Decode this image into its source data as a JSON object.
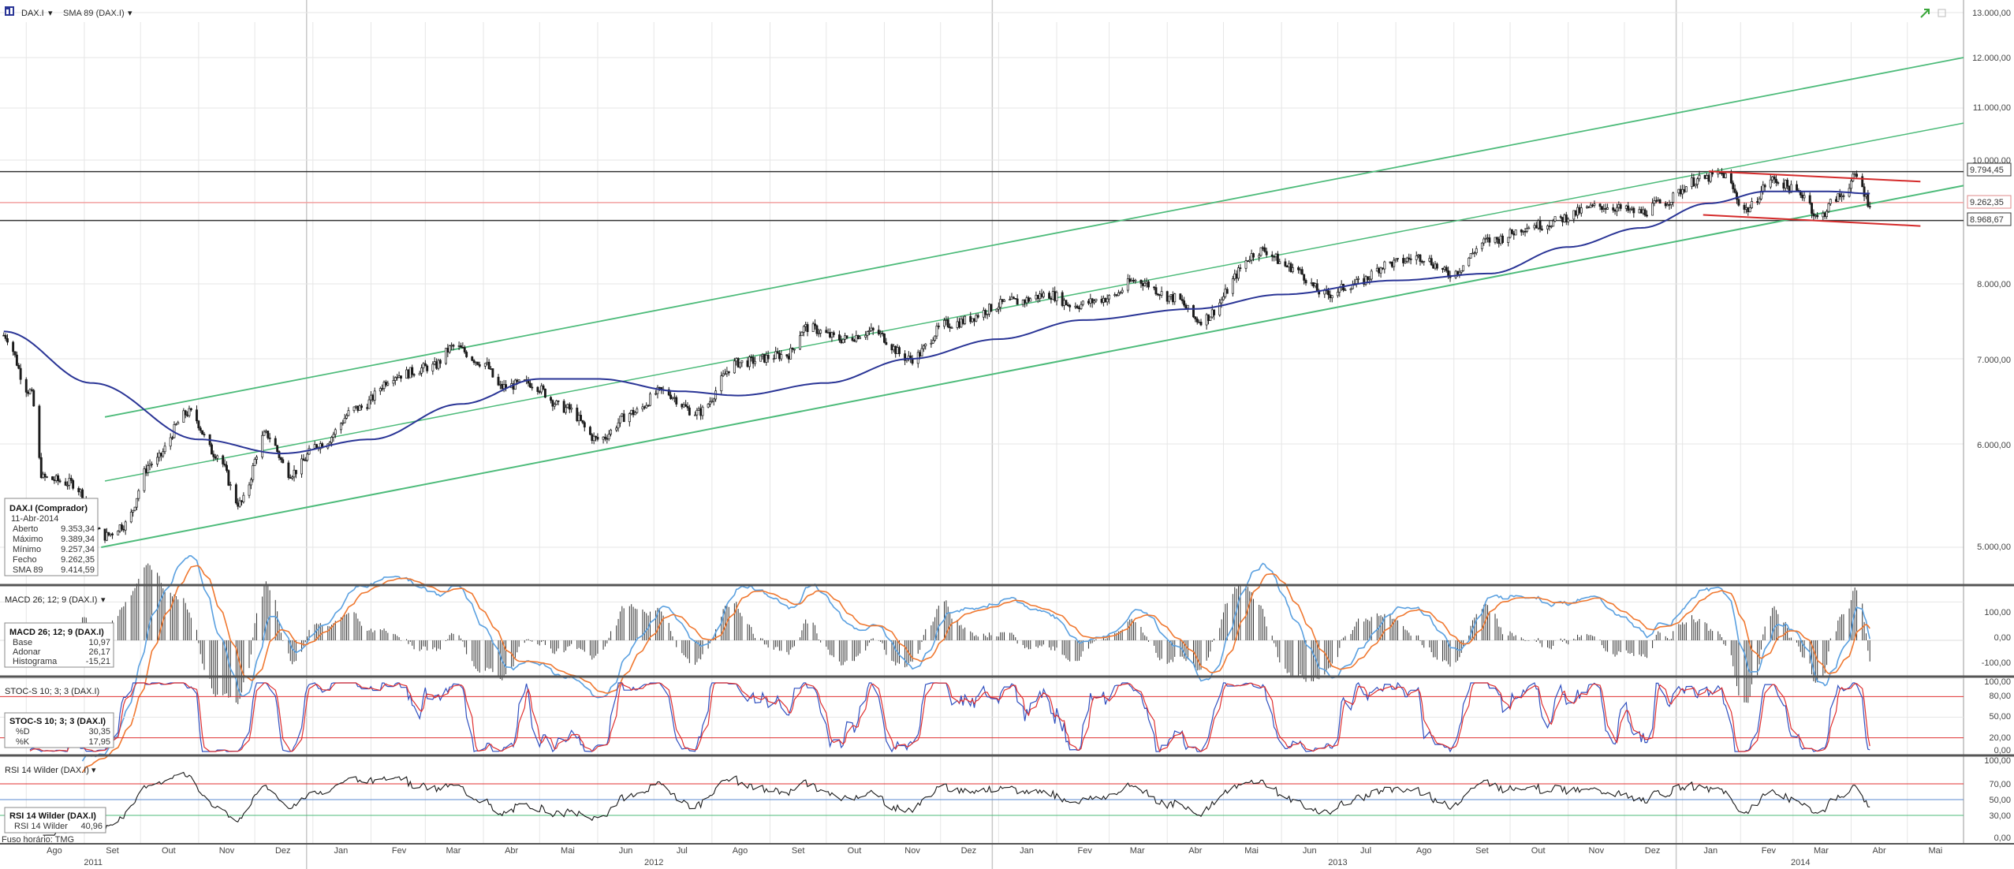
{
  "colors": {
    "price": "#1a1a1a",
    "sma": "#2a3596",
    "channel": "#4dbb7a",
    "trend_red": "#d42a2a",
    "hline_red": "#f2a0a0",
    "hline_dark": "#333333",
    "macd_signal": "#f07830",
    "macd_line": "#5aa0e0",
    "stoch_d": "#e03030",
    "stoch_k": "#3050c0",
    "rsi": "#1a1a1a",
    "grid": "#e6e6e6",
    "separator": "#555555"
  },
  "toolbar": {
    "instrument": "DAX.I",
    "indicator": "SMA 89 (DAX.I)"
  },
  "price_panel": {
    "y_axis_labels": [
      "13.000,00",
      "12.000,00",
      "11.000,00",
      "10.000,00",
      "8.000,00",
      "7.000,00",
      "6.000,00",
      "5.000,00"
    ],
    "level_labels": [
      "9.794,45",
      "9.262,35",
      "8.968,67"
    ],
    "info_box": {
      "title": "DAX.I (Comprador)",
      "date": "11-Abr-2014",
      "rows": [
        {
          "label": "Aberto",
          "value": "9.353,34"
        },
        {
          "label": "Máximo",
          "value": "9.389,34"
        },
        {
          "label": "Mínimo",
          "value": "9.257,34"
        },
        {
          "label": "Fecho",
          "value": "9.262,35"
        },
        {
          "label": "SMA 89",
          "value": "9.414,59"
        }
      ]
    }
  },
  "macd_panel": {
    "header": "MACD 26; 12; 9 (DAX.I)",
    "axis_labels": [
      "100,00",
      "0,00",
      "-100,00"
    ],
    "info_box": {
      "title": "MACD 26; 12; 9 (DAX.I)",
      "rows": [
        {
          "label": "Base",
          "value": "10,97"
        },
        {
          "label": "Adonar",
          "value": "26,17"
        },
        {
          "label": "Histograma",
          "value": "-15,21"
        }
      ]
    }
  },
  "stoch_panel": {
    "header": "STOC-S 10; 3; 3 (DAX.I)",
    "axis_labels": [
      "100,00",
      "80,00",
      "50,00",
      "20,00",
      "0,00"
    ],
    "info_box": {
      "title": "STOC-S 10; 3; 3 (DAX.I)",
      "rows": [
        {
          "label": "%D",
          "value": "30,35"
        },
        {
          "label": "%K",
          "value": "17,95"
        }
      ]
    }
  },
  "rsi_panel": {
    "header": "RSI 14 Wilder (DAX.I)",
    "axis_labels": [
      "100,00",
      "70,00",
      "50,00",
      "30,00",
      "0,00"
    ],
    "info_box": {
      "title": "RSI 14 Wilder (DAX.I)",
      "rows": [
        {
          "label": "RSI 14 Wilder",
          "value": "40,96"
        }
      ]
    }
  },
  "timezone": "Fuso horário: TMG",
  "months": [
    "Ago",
    "Set",
    "Out",
    "Nov",
    "Dez",
    "Jan",
    "Fev",
    "Mar",
    "Abr",
    "Mai",
    "Jun",
    "Jul",
    "Ago",
    "Set",
    "Out",
    "Nov",
    "Dez",
    "Jan",
    "Fev",
    "Mar",
    "Abr",
    "Mai",
    "Jun",
    "Jul",
    "Ago",
    "Set",
    "Out",
    "Nov",
    "Dez",
    "Jan",
    "Fev",
    "Mar",
    "Abr",
    "Mai"
  ],
  "years": [
    "2011",
    "2012",
    "2013",
    "2014"
  ],
  "chart_data": {
    "type": "candlestick",
    "instrument": "DAX.I",
    "y_scale": "log",
    "ylim": [
      4600,
      13200
    ],
    "x_range": [
      "2011-07-18",
      "2014-05-31"
    ],
    "series": [
      {
        "name": "DAX.I",
        "points": [
          [
            "2011-07-20",
            7300
          ],
          [
            "2011-08-03",
            6600
          ],
          [
            "2011-08-10",
            5650
          ],
          [
            "2011-08-25",
            5600
          ],
          [
            "2011-09-12",
            5100
          ],
          [
            "2011-09-22",
            5200
          ],
          [
            "2011-10-07",
            5800
          ],
          [
            "2011-10-27",
            6350
          ],
          [
            "2011-11-10",
            5900
          ],
          [
            "2011-11-23",
            5400
          ],
          [
            "2011-12-07",
            6100
          ],
          [
            "2011-12-20",
            5700
          ],
          [
            "2012-01-05",
            6000
          ],
          [
            "2012-01-25",
            6400
          ],
          [
            "2012-02-15",
            6800
          ],
          [
            "2012-03-05",
            6900
          ],
          [
            "2012-03-16",
            7150
          ],
          [
            "2012-04-01",
            6950
          ],
          [
            "2012-04-10",
            6650
          ],
          [
            "2012-04-25",
            6700
          ],
          [
            "2012-05-15",
            6400
          ],
          [
            "2012-06-01",
            6050
          ],
          [
            "2012-06-20",
            6350
          ],
          [
            "2012-07-05",
            6600
          ],
          [
            "2012-07-24",
            6350
          ],
          [
            "2012-08-15",
            6950
          ],
          [
            "2012-09-10",
            7050
          ],
          [
            "2012-09-20",
            7400
          ],
          [
            "2012-10-10",
            7250
          ],
          [
            "2012-10-25",
            7350
          ],
          [
            "2012-11-15",
            7000
          ],
          [
            "2012-12-05",
            7450
          ],
          [
            "2013-01-10",
            7750
          ],
          [
            "2013-01-28",
            7850
          ],
          [
            "2013-02-10",
            7700
          ],
          [
            "2013-03-01",
            7800
          ],
          [
            "2013-03-15",
            8050
          ],
          [
            "2013-04-05",
            7800
          ],
          [
            "2013-04-18",
            7500
          ],
          [
            "2013-05-22",
            8500
          ],
          [
            "2013-06-05",
            8250
          ],
          [
            "2013-06-25",
            7850
          ],
          [
            "2013-07-10",
            8000
          ],
          [
            "2013-07-29",
            8300
          ],
          [
            "2013-08-14",
            8400
          ],
          [
            "2013-08-30",
            8150
          ],
          [
            "2013-09-20",
            8650
          ],
          [
            "2013-10-15",
            8900
          ],
          [
            "2013-11-20",
            9200
          ],
          [
            "2013-12-10",
            9100
          ],
          [
            "2013-12-20",
            9250
          ],
          [
            "2014-01-10",
            9650
          ],
          [
            "2014-01-22",
            9750
          ],
          [
            "2014-02-04",
            9150
          ],
          [
            "2014-02-18",
            9650
          ],
          [
            "2014-03-07",
            9400
          ],
          [
            "2014-03-14",
            9000
          ],
          [
            "2014-03-25",
            9350
          ],
          [
            "2014-04-04",
            9700
          ],
          [
            "2014-04-11",
            9262
          ]
        ]
      },
      {
        "name": "SMA 89",
        "points": [
          [
            "2011-07-20",
            7350
          ],
          [
            "2011-09-05",
            6700
          ],
          [
            "2011-11-01",
            6050
          ],
          [
            "2011-12-15",
            5900
          ],
          [
            "2012-02-01",
            6050
          ],
          [
            "2012-03-20",
            6450
          ],
          [
            "2012-05-01",
            6750
          ],
          [
            "2012-06-01",
            6750
          ],
          [
            "2012-07-15",
            6600
          ],
          [
            "2012-08-15",
            6550
          ],
          [
            "2012-10-01",
            6700
          ],
          [
            "2012-11-15",
            7000
          ],
          [
            "2013-01-01",
            7250
          ],
          [
            "2013-02-15",
            7500
          ],
          [
            "2013-04-15",
            7650
          ],
          [
            "2013-06-01",
            7850
          ],
          [
            "2013-08-01",
            8050
          ],
          [
            "2013-09-20",
            8150
          ],
          [
            "2013-11-01",
            8550
          ],
          [
            "2013-12-10",
            8850
          ],
          [
            "2014-01-15",
            9250
          ],
          [
            "2014-02-15",
            9450
          ],
          [
            "2014-03-20",
            9450
          ],
          [
            "2014-04-11",
            9414.59
          ]
        ]
      }
    ],
    "levels": [
      9794.45,
      9262.35,
      8968.67
    ],
    "last_bar": {
      "date": "11-Abr-2014",
      "open": 9353.34,
      "high": 9389.34,
      "low": 9257.34,
      "close": 9262.35,
      "sma89": 9414.59
    },
    "indicators": {
      "macd": {
        "base": 10.97,
        "signal": 26.17,
        "histogram": -15.21,
        "ylim": [
          -140,
          140
        ]
      },
      "stochastic": {
        "d": 30.35,
        "k": 17.95,
        "levels": [
          80,
          20
        ],
        "ylim": [
          0,
          100
        ]
      },
      "rsi": {
        "value": 40.96,
        "levels": [
          70,
          50,
          30
        ],
        "ylim": [
          0,
          100
        ]
      }
    }
  }
}
